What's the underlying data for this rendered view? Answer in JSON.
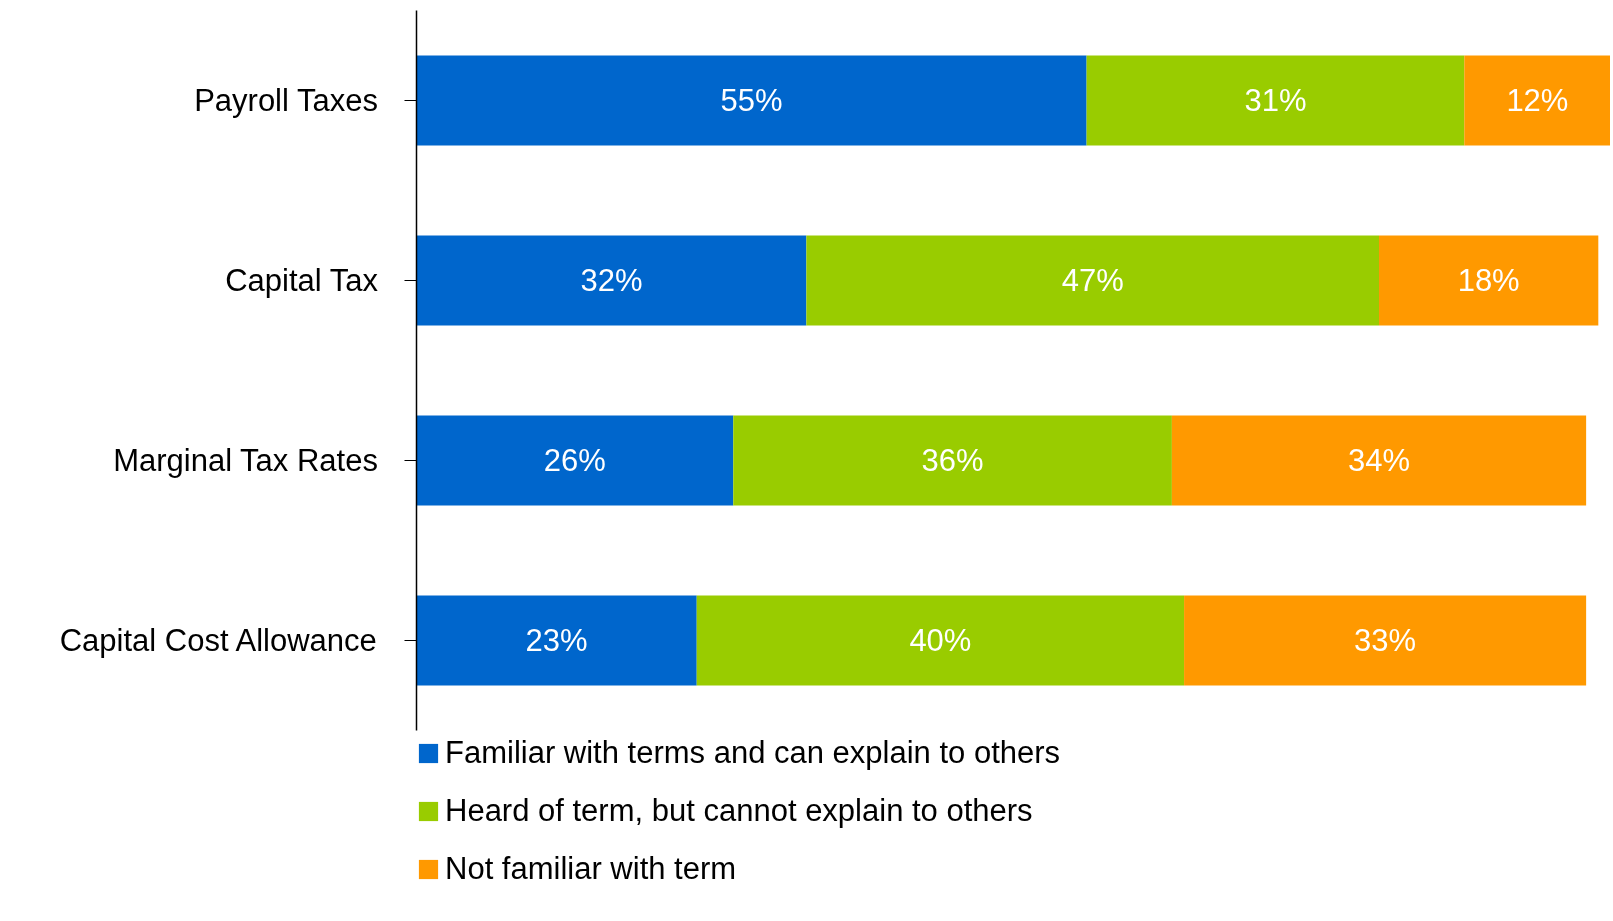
{
  "chart_data": {
    "type": "bar",
    "orientation": "horizontal",
    "stacked": true,
    "legend": "bottom",
    "grid": false,
    "categories": [
      "Payroll Taxes",
      "Capital Tax",
      "Marginal Tax Rates",
      "Capital Cost Allowance"
    ],
    "series": [
      {
        "name": "Familiar with terms and can explain to others",
        "color": "#0066cc",
        "values": [
          55,
          32,
          26,
          23
        ],
        "value_labels": [
          "55%",
          "32%",
          "26%",
          "23%"
        ]
      },
      {
        "name": "Heard of term, but cannot explain to others",
        "color": "#99cc00",
        "values": [
          31,
          47,
          36,
          40
        ],
        "value_labels": [
          "31%",
          "47%",
          "36%",
          "40%"
        ]
      },
      {
        "name": "Not familiar with term",
        "color": "#ff9900",
        "values": [
          12,
          18,
          34,
          33
        ],
        "value_labels": [
          "12%",
          "18%",
          "34%",
          "33%"
        ]
      }
    ]
  }
}
